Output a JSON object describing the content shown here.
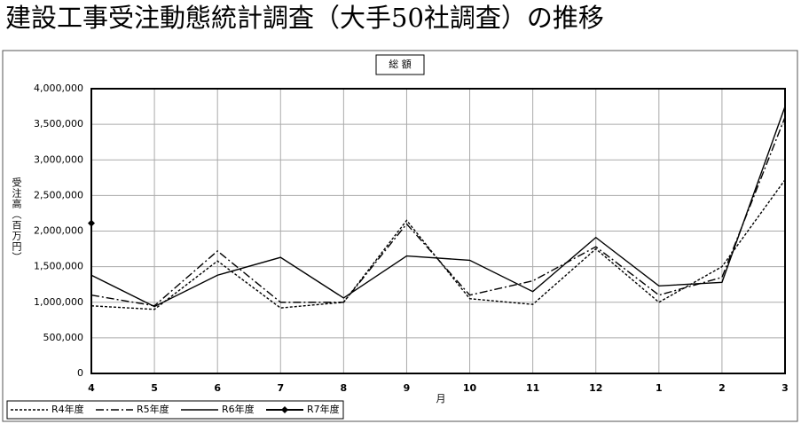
{
  "chart_data": {
    "type": "line",
    "title": "建設工事受注動態統計調査（大手50社調査）の推移",
    "subtitle": "総 額",
    "x_label": "月",
    "y_label": "受注高（百万円）",
    "categories": [
      "4",
      "5",
      "6",
      "7",
      "8",
      "9",
      "10",
      "11",
      "12",
      "1",
      "2",
      "3"
    ],
    "ylim": [
      0,
      4000000
    ],
    "yticks": [
      0,
      {
        "value": 500000,
        "label": "500,000"
      },
      {
        "value": 1000000,
        "label": "1,000,000"
      },
      {
        "value": 1500000,
        "label": "1,500,000"
      },
      {
        "value": 2000000,
        "label": "2,000,000"
      },
      {
        "value": 2500000,
        "label": "2,500,000"
      },
      {
        "value": 3000000,
        "label": "3,000,000"
      },
      {
        "value": 3500000,
        "label": "3,500,000"
      },
      {
        "value": 4000000,
        "label": "4,000,000"
      }
    ],
    "grid": true,
    "legend": "bottom-left",
    "series": [
      {
        "name": "R4年度",
        "color": "#000000",
        "style": "dotted",
        "values": [
          950000,
          900000,
          1580000,
          920000,
          1000000,
          2150000,
          1050000,
          970000,
          1750000,
          1000000,
          1500000,
          2720000
        ]
      },
      {
        "name": "R5年度",
        "color": "#000000",
        "style": "dashdot",
        "values": [
          1100000,
          950000,
          1720000,
          1000000,
          1000000,
          2100000,
          1100000,
          1300000,
          1780000,
          1100000,
          1350000,
          3600000
        ]
      },
      {
        "name": "R6年度",
        "color": "#000000",
        "style": "solid",
        "values": [
          1380000,
          940000,
          1380000,
          1630000,
          1060000,
          1650000,
          1590000,
          1150000,
          1910000,
          1230000,
          1280000,
          3750000
        ]
      },
      {
        "name": "R7年度",
        "color": "#000000",
        "style": "solid",
        "marker": "diamond",
        "values": [
          2110000,
          null,
          null,
          null,
          null,
          null,
          null,
          null,
          null,
          null,
          null,
          null
        ]
      }
    ]
  }
}
